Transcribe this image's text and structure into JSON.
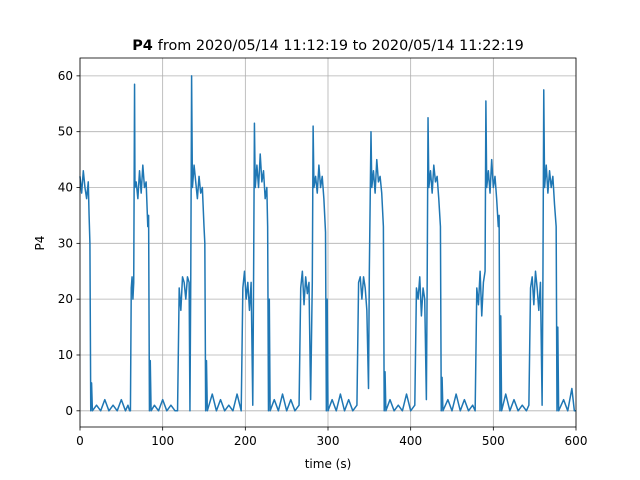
{
  "chart_data": {
    "type": "line",
    "title": [
      "P4",
      "from 2020/05/14 11:12:19 to 2020/05/14 11:22:19"
    ],
    "xlabel": "time (s)",
    "ylabel": "P4",
    "x": [
      0,
      2,
      4,
      6,
      8,
      10,
      11,
      12,
      13,
      14,
      15,
      20,
      25,
      30,
      35,
      40,
      45,
      50,
      55,
      58,
      60,
      61,
      62,
      63,
      64,
      65,
      66,
      66.5,
      68,
      70,
      72,
      74,
      76,
      78,
      80,
      82,
      83,
      84,
      85,
      86,
      90,
      95,
      100,
      105,
      110,
      115,
      118,
      120,
      122,
      124,
      126,
      128,
      130,
      132,
      133,
      134,
      135,
      136,
      138,
      140,
      142,
      144,
      146,
      148,
      150,
      151,
      152,
      153,
      154,
      160,
      165,
      170,
      175,
      180,
      185,
      190,
      195,
      197,
      199,
      201,
      203,
      205,
      207,
      209,
      210,
      211,
      212,
      214,
      216,
      218,
      220,
      222,
      224,
      226,
      227,
      228,
      229,
      230,
      235,
      240,
      245,
      250,
      255,
      260,
      265,
      267,
      269,
      271,
      273,
      275,
      277,
      279,
      281,
      282,
      283,
      285,
      287,
      289,
      291,
      293,
      295,
      297,
      298,
      299,
      300,
      305,
      310,
      315,
      320,
      325,
      330,
      335,
      337,
      339,
      341,
      343,
      345,
      347,
      349,
      350,
      352,
      353,
      355,
      357,
      359,
      361,
      363,
      365,
      367,
      368,
      369,
      370,
      375,
      380,
      385,
      390,
      395,
      400,
      405,
      407,
      409,
      411,
      413,
      415,
      417,
      419,
      420,
      421,
      422,
      424,
      426,
      428,
      430,
      432,
      434,
      436,
      437,
      438,
      439,
      445,
      450,
      455,
      460,
      465,
      470,
      475,
      478,
      480,
      482,
      484,
      486,
      488,
      490,
      491,
      492,
      494,
      496,
      498,
      500,
      502,
      504,
      506,
      507,
      508,
      509,
      510,
      515,
      520,
      525,
      530,
      535,
      540,
      543,
      545,
      547,
      549,
      551,
      553,
      555,
      557,
      559,
      560,
      561,
      562,
      564,
      566,
      568,
      570,
      572,
      574,
      576,
      577,
      578,
      579,
      585,
      590,
      595,
      598,
      600
    ],
    "series": [
      {
        "color": "#1f77b4",
        "values": [
          42,
          39,
          43,
          40,
          38,
          41,
          35,
          30,
          0,
          5,
          0,
          1,
          0,
          2,
          0,
          1,
          0,
          2,
          0,
          1,
          0,
          0,
          22,
          24,
          20,
          23,
          58.5,
          40,
          41,
          38,
          43,
          39,
          44,
          40,
          41,
          33,
          35,
          0,
          9,
          0,
          1,
          0,
          2,
          0,
          1,
          0,
          0,
          22,
          18,
          24,
          23,
          20,
          24,
          23,
          0,
          24,
          60,
          40,
          44,
          41,
          38,
          42,
          39,
          40,
          33,
          30,
          0,
          9,
          0,
          3,
          0,
          2,
          0,
          1,
          0,
          3,
          0,
          22,
          25,
          20,
          23,
          18,
          23,
          1,
          24,
          51.5,
          40,
          44,
          40,
          46,
          41,
          43,
          38,
          40,
          33,
          0,
          20,
          0,
          2,
          0,
          3,
          0,
          2,
          0,
          1,
          22,
          25,
          19,
          24,
          21,
          23,
          2,
          23,
          51,
          40,
          42,
          39,
          44,
          40,
          42,
          38,
          32,
          0,
          20,
          0,
          2,
          0,
          3,
          0,
          2,
          0,
          1,
          23,
          24,
          20,
          24,
          22,
          18,
          4,
          25,
          50,
          40,
          43,
          39,
          45,
          41,
          42,
          39,
          33,
          0,
          7,
          0,
          2,
          0,
          1,
          0,
          3,
          0,
          1,
          22,
          20,
          24,
          17,
          22,
          20,
          2,
          24,
          52.5,
          40,
          43,
          39,
          44,
          41,
          42,
          38,
          33,
          0,
          6,
          0,
          2,
          0,
          3,
          0,
          2,
          0,
          1,
          0,
          22,
          19,
          25,
          17,
          23,
          25,
          55.5,
          40,
          43,
          39,
          45,
          40,
          42,
          38,
          33,
          35,
          0,
          17,
          0,
          3,
          0,
          2,
          0,
          1,
          0,
          1,
          22,
          24,
          19,
          25,
          22,
          18,
          23,
          1,
          24,
          57.5,
          40,
          44,
          39,
          43,
          40,
          42,
          37,
          33,
          0,
          15,
          0,
          2,
          0,
          4,
          0,
          0
        ]
      }
    ],
    "xlim": [
      0,
      600
    ],
    "xticks": [
      0,
      100,
      200,
      300,
      400,
      500,
      600
    ],
    "ylim": [
      -2.9,
      63.2
    ],
    "yticks": [
      0,
      10,
      20,
      30,
      40,
      50,
      60
    ],
    "grid": true
  }
}
